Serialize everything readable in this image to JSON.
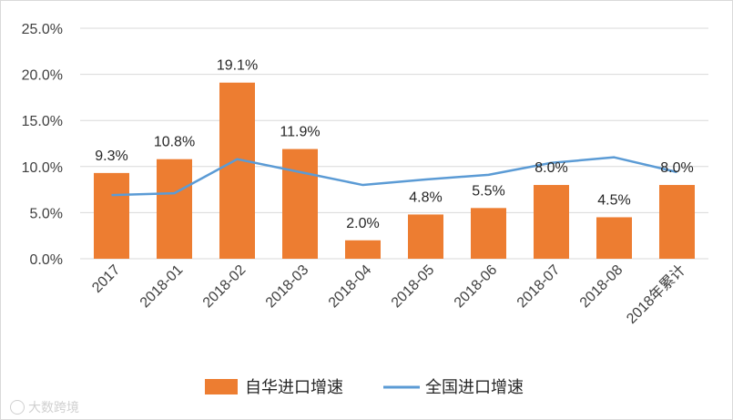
{
  "chart_data": {
    "type": "bar",
    "categories": [
      "2017",
      "2018-01",
      "2018-02",
      "2018-03",
      "2018-04",
      "2018-05",
      "2018-06",
      "2018-07",
      "2018-08",
      "2018年累计"
    ],
    "series": [
      {
        "name": "自华进口增速",
        "kind": "bar",
        "values": [
          9.3,
          10.8,
          19.1,
          11.9,
          2.0,
          4.8,
          5.5,
          8.0,
          4.5,
          8.0
        ],
        "labels": [
          "9.3%",
          "10.8%",
          "19.1%",
          "11.9%",
          "2.0%",
          "4.8%",
          "5.5%",
          "8.0%",
          "4.5%",
          "8.0%"
        ],
        "color": "#ED7D31"
      },
      {
        "name": "全国进口增速",
        "kind": "line",
        "values": [
          6.9,
          7.1,
          10.8,
          9.4,
          8.0,
          8.6,
          9.1,
          10.4,
          11.0,
          9.4
        ],
        "color": "#5B9BD5"
      }
    ],
    "ylim": [
      0,
      25
    ],
    "yticks": [
      0,
      5,
      10,
      15,
      20,
      25
    ],
    "ytick_labels": [
      "0.0%",
      "5.0%",
      "10.0%",
      "15.0%",
      "20.0%",
      "25.0%"
    ],
    "grid": true,
    "legend_position": "bottom",
    "title": "",
    "xlabel": "",
    "ylabel": ""
  },
  "watermark": "大数跨境"
}
